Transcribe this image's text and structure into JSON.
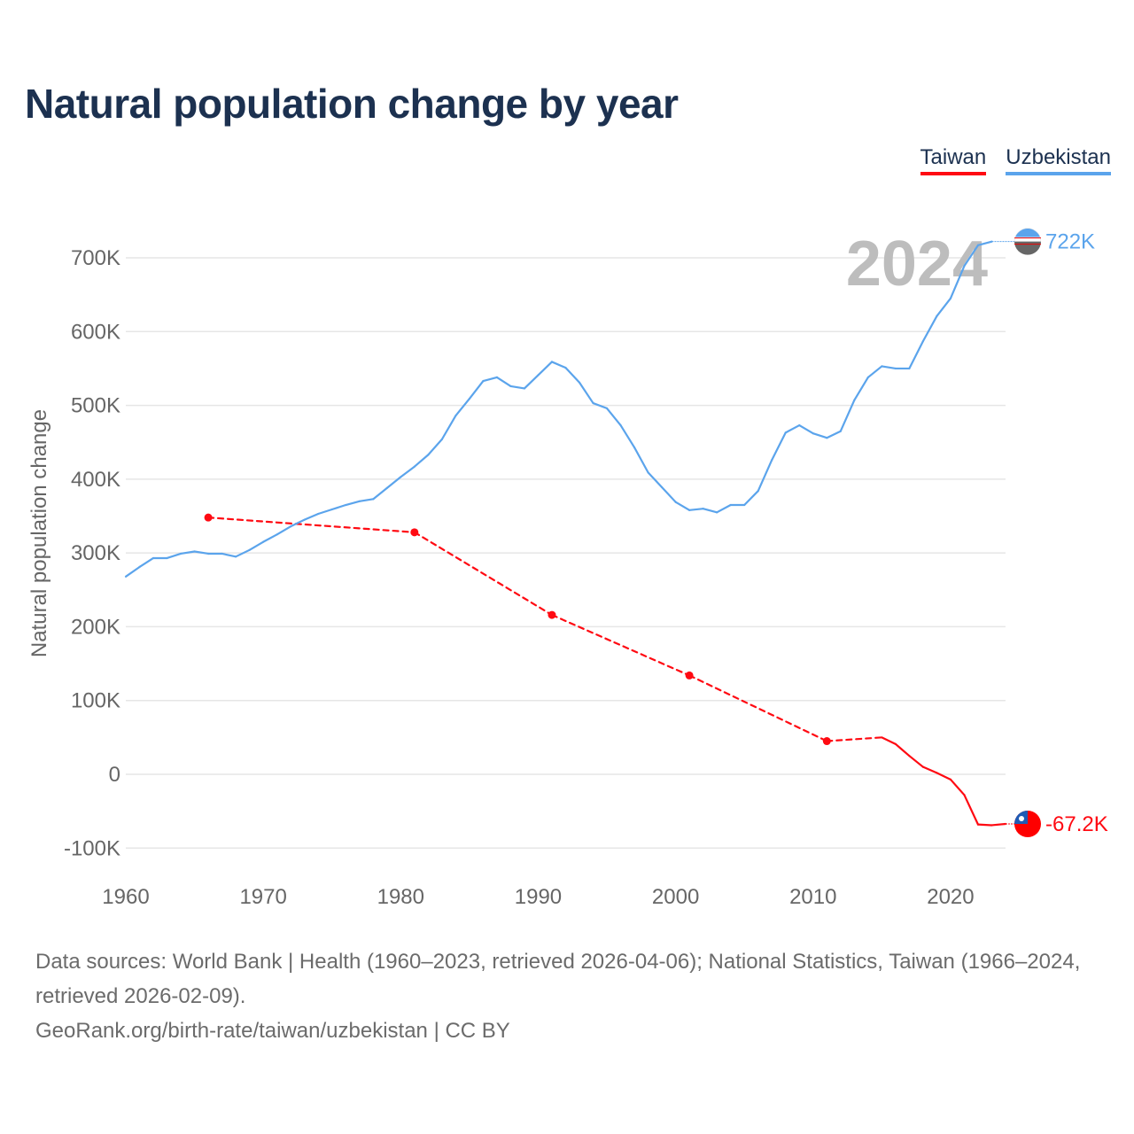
{
  "title": "Natural population change by year",
  "legend": [
    "Taiwan",
    "Uzbekistan"
  ],
  "footer": {
    "sources": "Data sources: World Bank | Health (1960–2023, retrieved 2026-04-06); National Statistics, Taiwan (1966–2024, retrieved 2026-02-09).",
    "credit": "GeoRank.org/birth-rate/taiwan/uzbekistan | CC BY"
  },
  "chart_data": {
    "type": "line",
    "title": "Natural population change by year",
    "xlabel": "",
    "ylabel": "Natural population change",
    "year_label": "2024",
    "xlim": [
      1960,
      2024
    ],
    "ylim": [
      -100000,
      700000
    ],
    "x_ticks": [
      1960,
      1970,
      1980,
      1990,
      2000,
      2010,
      2020
    ],
    "x_tick_labels": [
      "1960",
      "1970",
      "1980",
      "1990",
      "2000",
      "2010",
      "2020"
    ],
    "y_ticks": [
      -100000,
      0,
      100000,
      200000,
      300000,
      400000,
      500000,
      600000,
      700000
    ],
    "y_tick_labels": [
      "-100K",
      "0",
      "100K",
      "200K",
      "300K",
      "400K",
      "500K",
      "600K",
      "700K"
    ],
    "grid": true,
    "legend_position": "top-right",
    "series": [
      {
        "name": "Taiwan",
        "color": "#ff0a12",
        "end_label": "-67.2K",
        "x": [
          1966,
          1981,
          1991,
          2001,
          2011,
          2015,
          2016,
          2017,
          2018,
          2019,
          2020,
          2021,
          2022,
          2023,
          2024
        ],
        "values": [
          348000,
          328000,
          216000,
          134000,
          45000,
          50000,
          41000,
          25000,
          10000,
          2000,
          -7000,
          -28000,
          -68000,
          -69000,
          -67200
        ]
      },
      {
        "name": "Uzbekistan",
        "color": "#5ba4ec",
        "end_label": "722K",
        "x": [
          1960,
          1961,
          1962,
          1963,
          1964,
          1965,
          1966,
          1967,
          1968,
          1969,
          1970,
          1971,
          1972,
          1973,
          1974,
          1975,
          1976,
          1977,
          1978,
          1979,
          1980,
          1981,
          1982,
          1983,
          1984,
          1985,
          1986,
          1987,
          1988,
          1989,
          1990,
          1991,
          1992,
          1993,
          1994,
          1995,
          1996,
          1997,
          1998,
          1999,
          2000,
          2001,
          2002,
          2003,
          2004,
          2005,
          2006,
          2007,
          2008,
          2009,
          2010,
          2011,
          2012,
          2013,
          2014,
          2015,
          2016,
          2017,
          2018,
          2019,
          2020,
          2021,
          2022,
          2023
        ],
        "values": [
          268000,
          281000,
          293000,
          293000,
          299000,
          302000,
          299000,
          299000,
          295000,
          304000,
          315000,
          325000,
          336000,
          345000,
          353000,
          359000,
          365000,
          370000,
          373000,
          388000,
          403000,
          417000,
          433000,
          454000,
          486000,
          509000,
          533000,
          538000,
          526000,
          523000,
          541000,
          559000,
          551000,
          531000,
          503000,
          496000,
          473000,
          443000,
          409000,
          389000,
          369000,
          358000,
          360000,
          355000,
          365000,
          365000,
          384000,
          426000,
          463000,
          473000,
          462000,
          456000,
          465000,
          507000,
          538000,
          553000,
          550000,
          550000,
          587000,
          621000,
          645000,
          689000,
          717000,
          722000
        ]
      }
    ]
  }
}
